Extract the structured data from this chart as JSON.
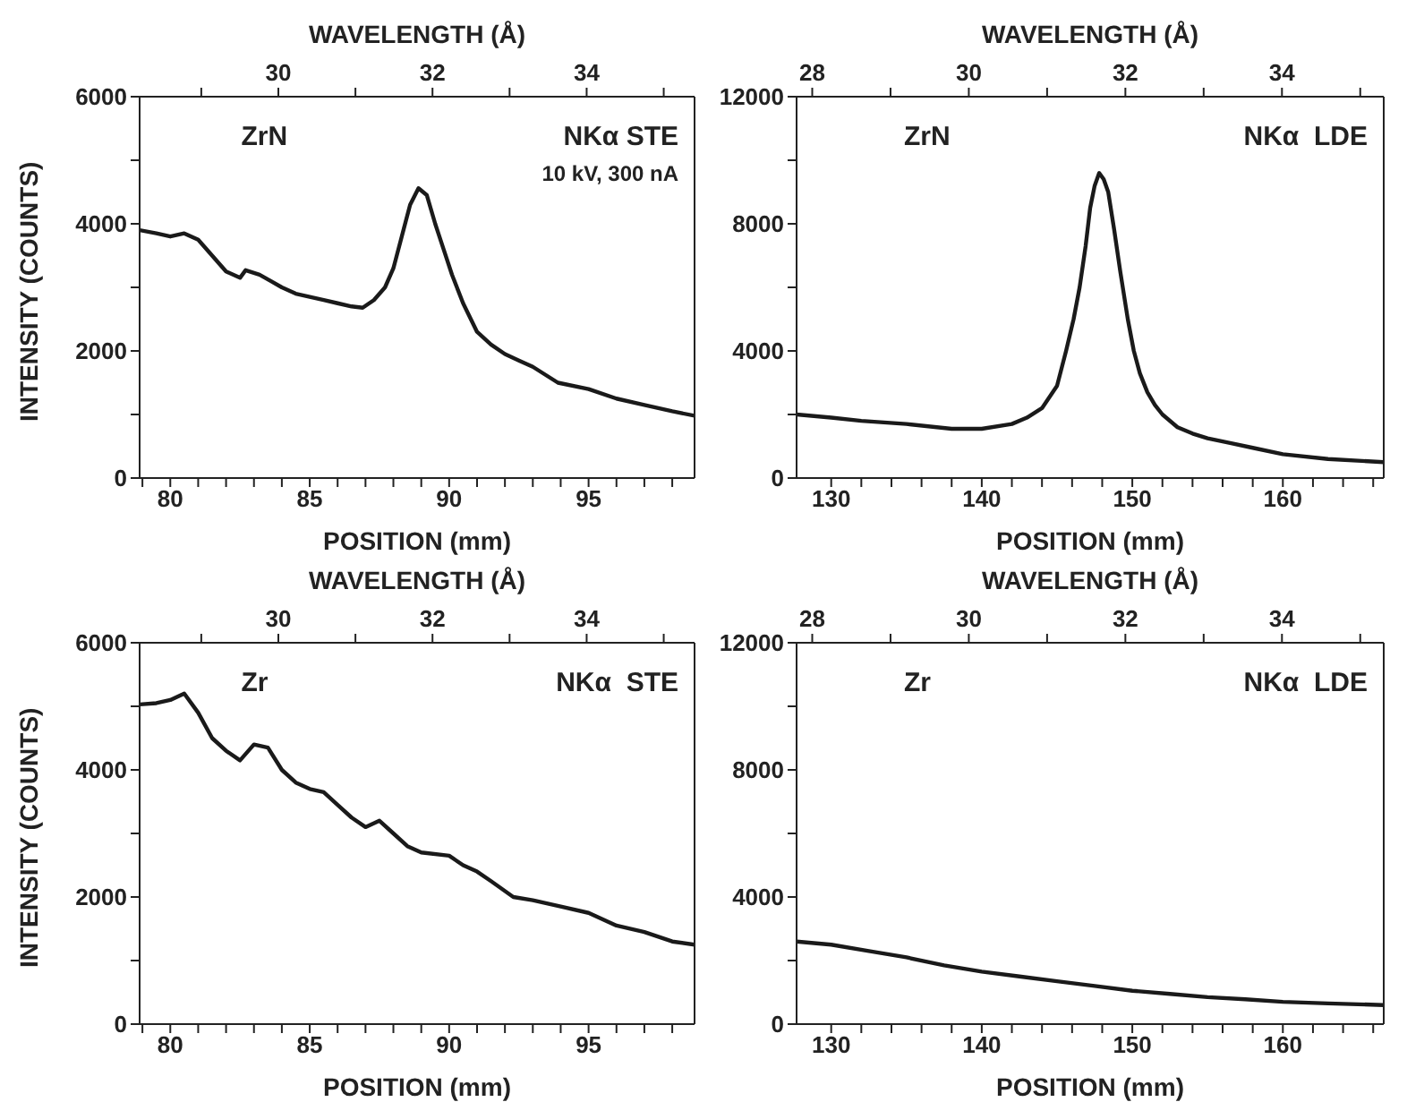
{
  "chart_data": [
    {
      "type": "line",
      "xlabel": "POSITION (mm)",
      "x2label": "WAVELENGTH (Å)",
      "ylabel": "INTENSITY (COUNTS)",
      "annotations": [
        "ZrN",
        "NKα STE",
        "10 kV, 300 nA"
      ],
      "xlim": [
        78.9,
        98.8
      ],
      "xticks": [
        {
          "value": 79,
          "label": null
        },
        80,
        {
          "value": 81,
          "label": null
        },
        {
          "value": 82,
          "label": null
        },
        {
          "value": 83,
          "label": null
        },
        {
          "value": 84,
          "label": null
        },
        85,
        {
          "value": 86,
          "label": null
        },
        {
          "value": 87,
          "label": null
        },
        {
          "value": 88,
          "label": null
        },
        {
          "value": 89,
          "label": null
        },
        90,
        {
          "value": 91,
          "label": null
        },
        {
          "value": 92,
          "label": null
        },
        {
          "value": 93,
          "label": null
        },
        {
          "value": 94,
          "label": null
        },
        95,
        {
          "value": 96,
          "label": null
        },
        {
          "value": 97,
          "label": null
        },
        {
          "value": 98,
          "label": null
        }
      ],
      "x2lim": [
        28.2,
        35.4
      ],
      "x2ticks": [
        {
          "value": 29,
          "label": null
        },
        30,
        {
          "value": 31,
          "label": null
        },
        32,
        {
          "value": 33,
          "label": null
        },
        34,
        {
          "value": 35,
          "label": null
        }
      ],
      "ylim": [
        0,
        6000
      ],
      "yticks": [
        0,
        {
          "value": 1000,
          "label": null
        },
        2000,
        {
          "value": 3000,
          "label": null
        },
        4000,
        {
          "value": 5000,
          "label": null
        },
        6000
      ],
      "series": [
        {
          "color": "#1a1a1a",
          "x": [
            78.9,
            79.5,
            80,
            80.5,
            81,
            81.5,
            82,
            82.5,
            82.7,
            83.2,
            83.6,
            84,
            84.5,
            85,
            85.5,
            86,
            86.5,
            86.9,
            87.3,
            87.7,
            88,
            88.3,
            88.6,
            88.9,
            89.2,
            89.5,
            89.8,
            90.1,
            90.5,
            91,
            91.5,
            92,
            92.5,
            93,
            93.9,
            95,
            96,
            97,
            98,
            98.8
          ],
          "values": [
            3900,
            3850,
            3800,
            3850,
            3750,
            3500,
            3250,
            3150,
            3270,
            3200,
            3100,
            3000,
            2900,
            2850,
            2800,
            2750,
            2700,
            2680,
            2800,
            3000,
            3300,
            3800,
            4300,
            4560,
            4450,
            4000,
            3600,
            3200,
            2750,
            2300,
            2100,
            1950,
            1850,
            1750,
            1500,
            1400,
            1250,
            1150,
            1050,
            980
          ]
        }
      ]
    },
    {
      "type": "line",
      "xlabel": "POSITION (mm)",
      "x2label": "WAVELENGTH (Å)",
      "annotations": [
        "ZrN",
        "NKα  LDE"
      ],
      "xlim": [
        127.7,
        166.7
      ],
      "xticks": [
        130,
        {
          "value": 132,
          "label": null
        },
        {
          "value": 134,
          "label": null
        },
        {
          "value": 136,
          "label": null
        },
        {
          "value": 138,
          "label": null
        },
        140,
        {
          "value": 142,
          "label": null
        },
        {
          "value": 144,
          "label": null
        },
        {
          "value": 146,
          "label": null
        },
        {
          "value": 148,
          "label": null
        },
        150,
        {
          "value": 152,
          "label": null
        },
        {
          "value": 154,
          "label": null
        },
        {
          "value": 156,
          "label": null
        },
        {
          "value": 158,
          "label": null
        },
        160,
        {
          "value": 162,
          "label": null
        },
        {
          "value": 164,
          "label": null
        },
        {
          "value": 166,
          "label": null
        }
      ],
      "x2lim": [
        27.8,
        35.3
      ],
      "x2ticks": [
        28,
        {
          "value": 29,
          "label": null
        },
        30,
        {
          "value": 31,
          "label": null
        },
        32,
        {
          "value": 33,
          "label": null
        },
        34,
        {
          "value": 35,
          "label": null
        }
      ],
      "ylim": [
        0,
        12000
      ],
      "yticks": [
        0,
        {
          "value": 2000,
          "label": null
        },
        4000,
        {
          "value": 6000,
          "label": null
        },
        8000,
        {
          "value": 10000,
          "label": null
        },
        12000
      ],
      "series": [
        {
          "color": "#1a1a1a",
          "x": [
            127.7,
            130,
            132,
            135,
            138,
            140,
            142,
            143,
            144,
            145,
            145.6,
            146.1,
            146.5,
            146.9,
            147.2,
            147.5,
            147.8,
            148.1,
            148.4,
            148.8,
            149.2,
            149.7,
            150.1,
            150.5,
            151,
            151.5,
            152,
            153,
            154,
            155,
            156.5,
            158,
            160,
            163,
            166.7
          ],
          "values": [
            2000,
            1900,
            1800,
            1700,
            1550,
            1550,
            1700,
            1900,
            2200,
            2900,
            4000,
            5000,
            6000,
            7300,
            8500,
            9200,
            9600,
            9400,
            9000,
            7800,
            6500,
            5000,
            4000,
            3300,
            2700,
            2300,
            2000,
            1600,
            1400,
            1250,
            1100,
            950,
            750,
            600,
            500
          ]
        }
      ]
    },
    {
      "type": "line",
      "xlabel": "POSITION (mm)",
      "x2label": "WAVELENGTH (Å)",
      "ylabel": "INTENSITY (COUNTS)",
      "annotations": [
        "Zr",
        "NKα  STE"
      ],
      "xlim": [
        78.9,
        98.8
      ],
      "xticks": [
        {
          "value": 79,
          "label": null
        },
        80,
        {
          "value": 81,
          "label": null
        },
        {
          "value": 82,
          "label": null
        },
        {
          "value": 83,
          "label": null
        },
        {
          "value": 84,
          "label": null
        },
        85,
        {
          "value": 86,
          "label": null
        },
        {
          "value": 87,
          "label": null
        },
        {
          "value": 88,
          "label": null
        },
        {
          "value": 89,
          "label": null
        },
        90,
        {
          "value": 91,
          "label": null
        },
        {
          "value": 92,
          "label": null
        },
        {
          "value": 93,
          "label": null
        },
        {
          "value": 94,
          "label": null
        },
        95,
        {
          "value": 96,
          "label": null
        },
        {
          "value": 97,
          "label": null
        },
        {
          "value": 98,
          "label": null
        }
      ],
      "x2lim": [
        28.2,
        35.4
      ],
      "x2ticks": [
        {
          "value": 29,
          "label": null
        },
        30,
        {
          "value": 31,
          "label": null
        },
        32,
        {
          "value": 33,
          "label": null
        },
        34,
        {
          "value": 35,
          "label": null
        }
      ],
      "ylim": [
        0,
        6000
      ],
      "yticks": [
        0,
        {
          "value": 1000,
          "label": null
        },
        2000,
        {
          "value": 3000,
          "label": null
        },
        4000,
        {
          "value": 5000,
          "label": null
        },
        6000
      ],
      "series": [
        {
          "color": "#1a1a1a",
          "x": [
            78.9,
            79.5,
            80,
            80.5,
            81,
            81.5,
            82,
            82.5,
            83,
            83.5,
            84,
            84.5,
            85,
            85.5,
            86,
            86.5,
            87,
            87.5,
            88,
            88.5,
            89,
            90,
            90.5,
            91,
            91.5,
            92.3,
            93,
            94,
            95,
            96,
            97,
            98,
            98.8
          ],
          "values": [
            5030,
            5050,
            5100,
            5200,
            4900,
            4500,
            4300,
            4150,
            4400,
            4350,
            4000,
            3800,
            3700,
            3650,
            3450,
            3250,
            3100,
            3200,
            3000,
            2800,
            2700,
            2650,
            2500,
            2400,
            2250,
            2000,
            1950,
            1850,
            1750,
            1550,
            1450,
            1300,
            1250
          ]
        }
      ]
    },
    {
      "type": "line",
      "xlabel": "POSITION (mm)",
      "x2label": "WAVELENGTH (Å)",
      "annotations": [
        "Zr",
        "NKα  LDE"
      ],
      "xlim": [
        127.7,
        166.7
      ],
      "xticks": [
        130,
        {
          "value": 132,
          "label": null
        },
        {
          "value": 134,
          "label": null
        },
        {
          "value": 136,
          "label": null
        },
        {
          "value": 138,
          "label": null
        },
        140,
        {
          "value": 142,
          "label": null
        },
        {
          "value": 144,
          "label": null
        },
        {
          "value": 146,
          "label": null
        },
        {
          "value": 148,
          "label": null
        },
        150,
        {
          "value": 152,
          "label": null
        },
        {
          "value": 154,
          "label": null
        },
        {
          "value": 156,
          "label": null
        },
        {
          "value": 158,
          "label": null
        },
        160,
        {
          "value": 162,
          "label": null
        },
        {
          "value": 164,
          "label": null
        },
        {
          "value": 166,
          "label": null
        }
      ],
      "x2lim": [
        27.8,
        35.3
      ],
      "x2ticks": [
        28,
        {
          "value": 29,
          "label": null
        },
        30,
        {
          "value": 31,
          "label": null
        },
        32,
        {
          "value": 33,
          "label": null
        },
        34,
        {
          "value": 35,
          "label": null
        }
      ],
      "ylim": [
        0,
        12000
      ],
      "yticks": [
        0,
        {
          "value": 2000,
          "label": null
        },
        4000,
        {
          "value": 6000,
          "label": null
        },
        8000,
        {
          "value": 10000,
          "label": null
        },
        12000
      ],
      "series": [
        {
          "color": "#1a1a1a",
          "x": [
            127.7,
            130,
            132.5,
            135,
            137.5,
            140,
            142.5,
            145,
            147.5,
            150,
            152.5,
            155,
            157.5,
            160,
            163,
            166.7
          ],
          "values": [
            2600,
            2500,
            2300,
            2100,
            1850,
            1650,
            1500,
            1350,
            1200,
            1050,
            950,
            850,
            780,
            700,
            650,
            600
          ]
        }
      ]
    }
  ]
}
